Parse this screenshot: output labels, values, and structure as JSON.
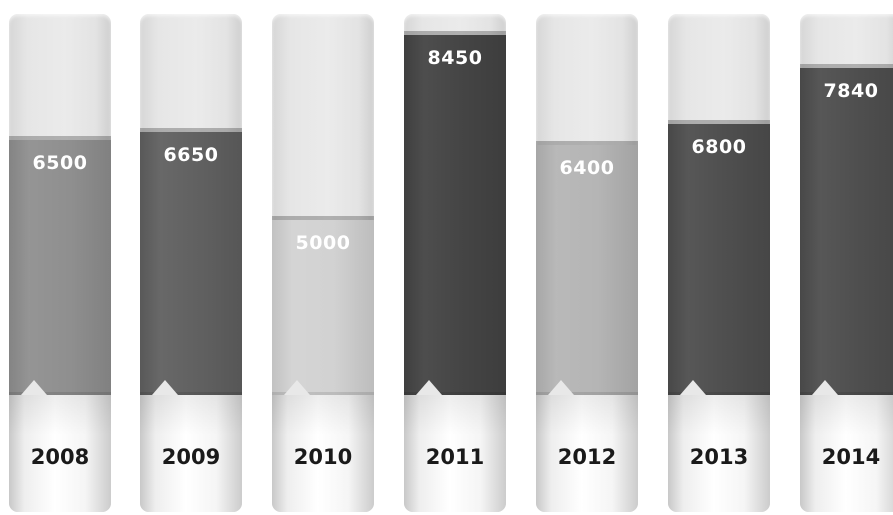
{
  "chart_data": {
    "type": "bar",
    "categories": [
      "2008",
      "2009",
      "2010",
      "2011",
      "2012",
      "2013",
      "2014"
    ],
    "values": [
      6500,
      6650,
      5000,
      8450,
      6400,
      6800,
      7840
    ],
    "value_labels": [
      "6500",
      "6650",
      "5000",
      "8450",
      "6400",
      "6800",
      "7840"
    ],
    "colors": [
      "#8f8f8f",
      "#606060",
      "#d2d2d2",
      "#444444",
      "#b5b5b5",
      "#4e4e4e",
      "#4e4e4e"
    ],
    "title": "",
    "xlabel": "",
    "ylabel": "",
    "ylim": [
      1735,
      8850
    ],
    "grid": false,
    "legend": "none"
  }
}
